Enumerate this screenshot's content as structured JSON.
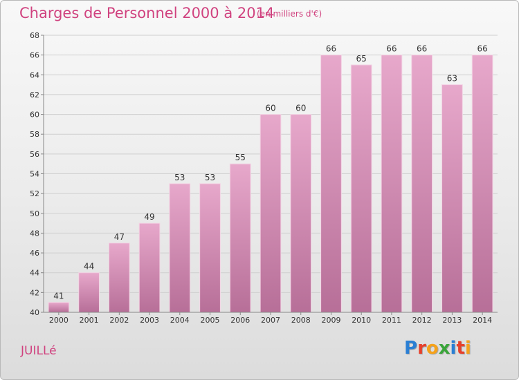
{
  "header": {
    "title": "Charges de Personnel 2000 à 2014",
    "subtitle": "(en milliers d'€)"
  },
  "footer": {
    "commune": "JUILLé",
    "logo_letters": [
      "P",
      "r",
      "o",
      "x",
      "i",
      "t",
      "i"
    ],
    "logo_colors": [
      "#2a7fd4",
      "#e7402b",
      "#f5a21b",
      "#3aa53a",
      "#2a7fd4",
      "#e7402b",
      "#f5a21b"
    ]
  },
  "chart_data": {
    "type": "bar",
    "title": "Charges de Personnel 2000 à 2014",
    "subtitle": "(en milliers d'€)",
    "xlabel": "",
    "ylabel": "",
    "categories": [
      "2000",
      "2001",
      "2002",
      "2003",
      "2004",
      "2005",
      "2006",
      "2007",
      "2008",
      "2009",
      "2010",
      "2011",
      "2012",
      "2013",
      "2014"
    ],
    "values": [
      41,
      44,
      47,
      49,
      53,
      53,
      55,
      60,
      60,
      66,
      65,
      66,
      66,
      63,
      66
    ],
    "ylim": [
      40,
      68
    ],
    "yticks": [
      40,
      42,
      44,
      46,
      48,
      50,
      52,
      54,
      56,
      58,
      60,
      62,
      64,
      66,
      68
    ],
    "grid": true,
    "bar_color": "#d98bb4"
  }
}
